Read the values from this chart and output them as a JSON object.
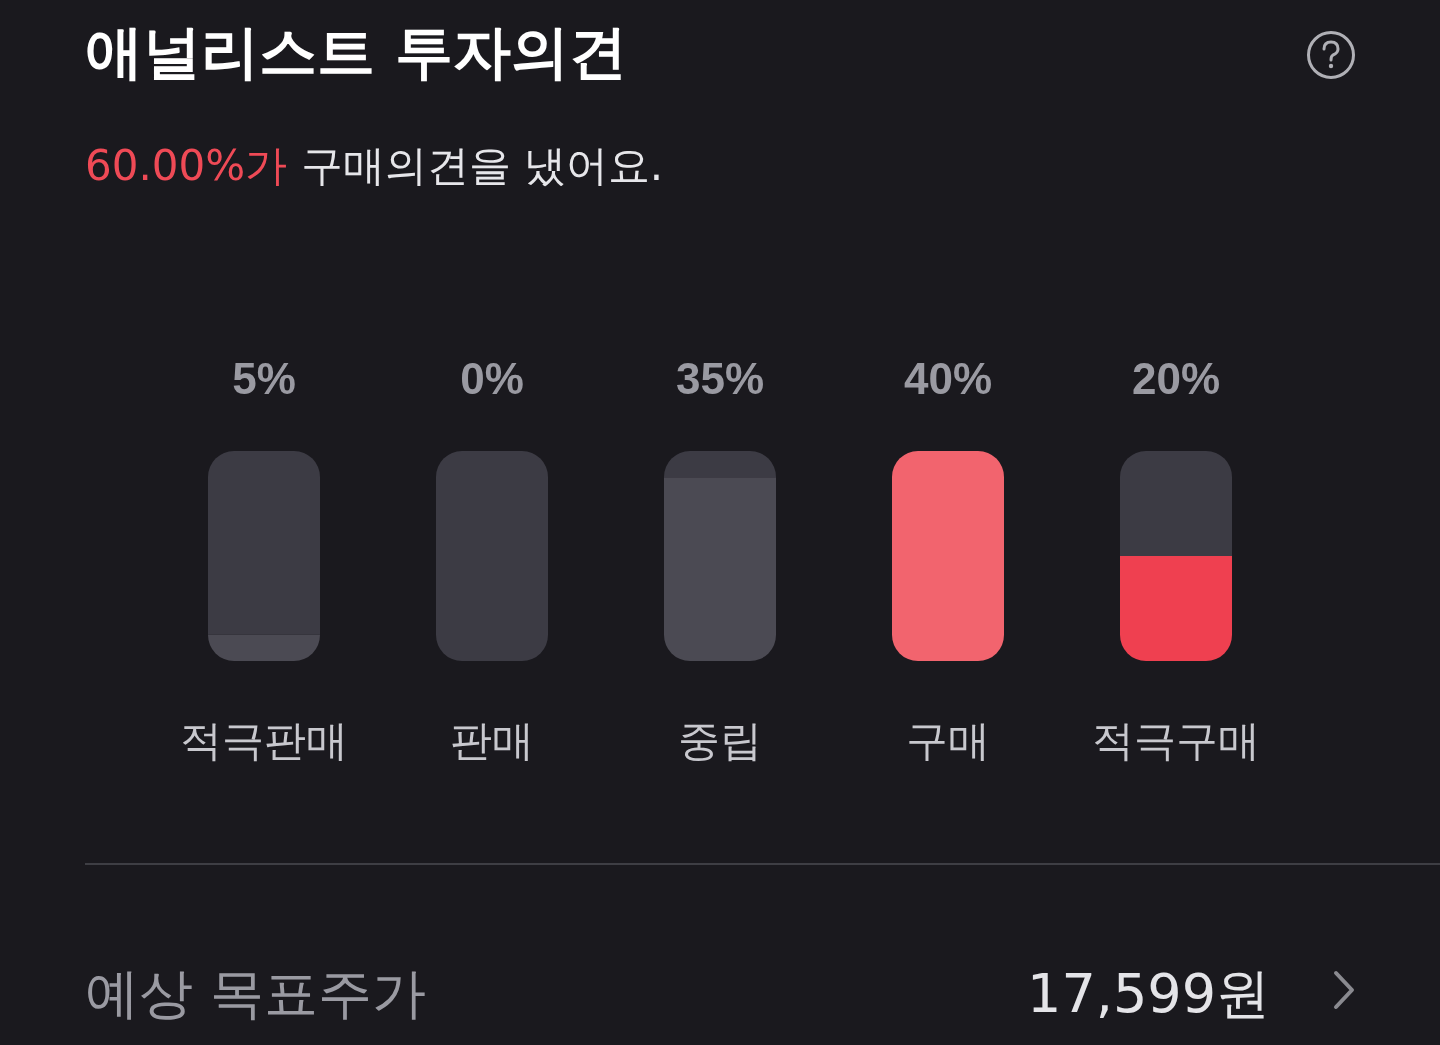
{
  "chart_data": {
    "type": "bar",
    "title": "애널리스트 투자의견",
    "subtitle": "60.00%가 구매의견을 냈어요.",
    "categories": [
      "적극판매",
      "판매",
      "중립",
      "구매",
      "적극구매"
    ],
    "stacked": true,
    "series": [
      {
        "values": [
          5,
          0,
          35,
          40,
          20
        ],
        "colors": [
          "#4b4a53",
          "#4b4a53",
          "#4b4a53",
          "#f2646e",
          "#ef4050"
        ],
        "value_labels": [
          "5%",
          "0%",
          "35%",
          "40%",
          "20%"
        ]
      },
      {
        "values": [
          35,
          40,
          5,
          0,
          20
        ],
        "color": "#3c3b44"
      }
    ],
    "annotations": [
      "예상 목표주가",
      "17,599원"
    ]
  }
}
